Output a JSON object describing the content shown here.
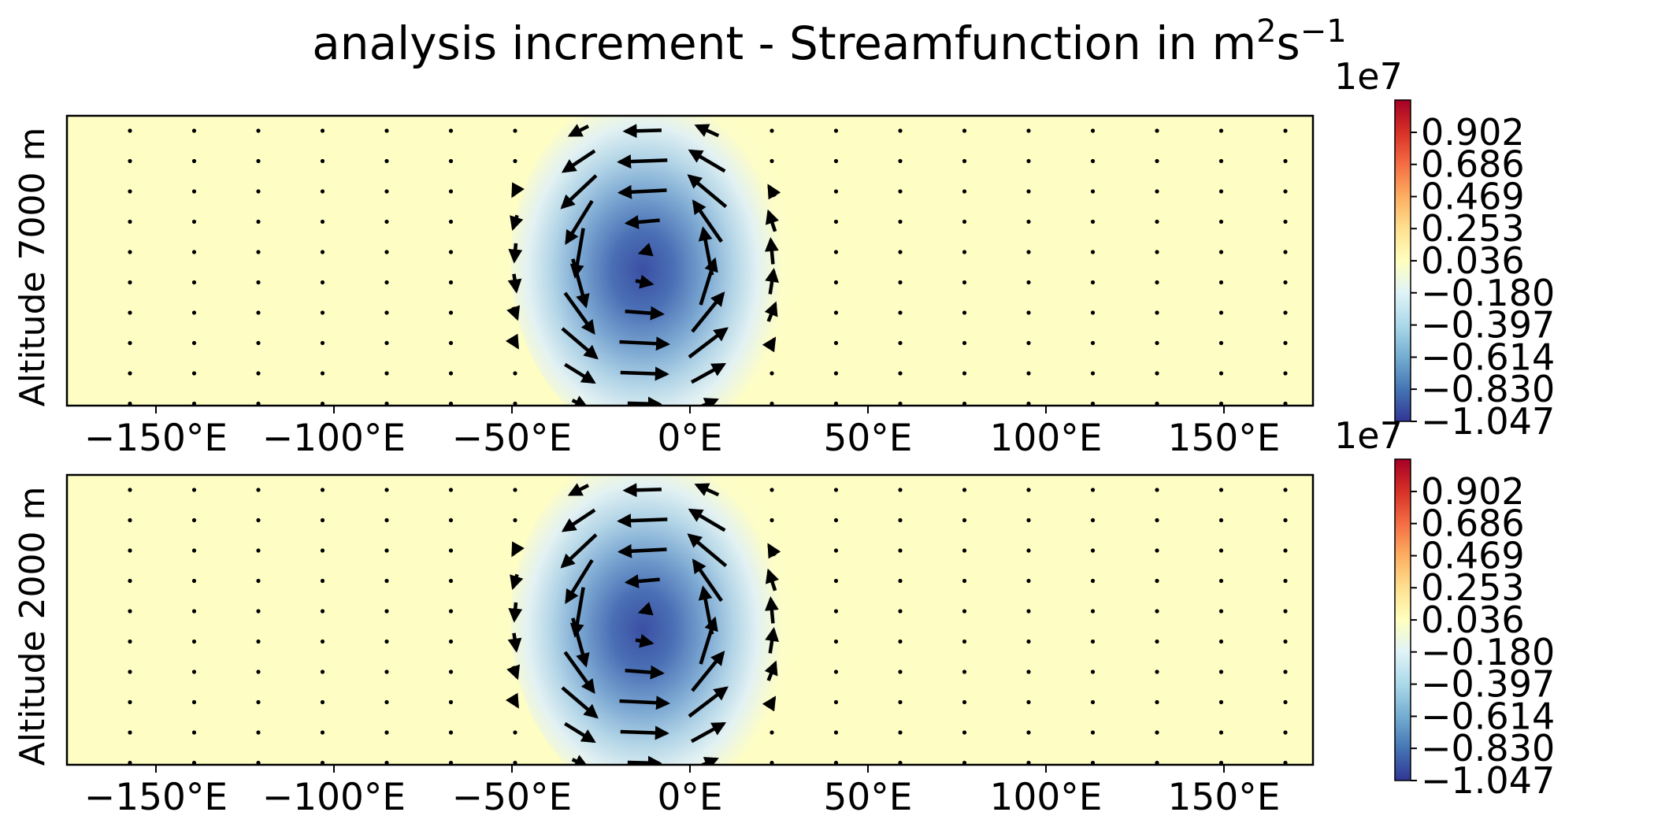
{
  "title": {
    "text": "analysis increment - Streamfunction in m",
    "sup1": "2",
    "mid": "s",
    "sup2": "−1"
  },
  "chart_data": [
    {
      "type": "heatmap",
      "ylabel": "Altitude 7000 m",
      "xlim": [
        -175,
        175
      ],
      "xticks": [
        "−150°E",
        "−100°E",
        "−50°E",
        "0°E",
        "50°E",
        "100°E",
        "150°E"
      ],
      "xtick_values": [
        -150,
        -100,
        -50,
        0,
        50,
        100,
        150
      ],
      "field": {
        "center_lon": -12,
        "min": -10470000.0,
        "background": 360000.0
      },
      "vectors": "cyclonic wind arrows around a streamfunction minimum near 10°W",
      "colorbar": {
        "offset_label": "1e7",
        "ticks": [
          "0.902",
          "0.686",
          "0.469",
          "0.253",
          "0.036",
          "−0.180",
          "−0.397",
          "−0.614",
          "−0.830",
          "−1.047"
        ],
        "tick_values": [
          0.902,
          0.686,
          0.469,
          0.253,
          0.036,
          -0.18,
          -0.397,
          -0.614,
          -0.83,
          -1.047
        ],
        "cmap": "RdYlBu_r"
      }
    },
    {
      "type": "heatmap",
      "ylabel": "Altitude 2000 m",
      "xlim": [
        -175,
        175
      ],
      "xticks": [
        "−150°E",
        "−100°E",
        "−50°E",
        "0°E",
        "50°E",
        "100°E",
        "150°E"
      ],
      "xtick_values": [
        -150,
        -100,
        -50,
        0,
        50,
        100,
        150
      ],
      "field": {
        "center_lon": -12,
        "min": -10470000.0,
        "background": 360000.0
      },
      "vectors": "cyclonic wind arrows around a streamfunction minimum near 10°W",
      "colorbar": {
        "offset_label": "1e7",
        "ticks": [
          "0.902",
          "0.686",
          "0.469",
          "0.253",
          "0.036",
          "−0.180",
          "−0.397",
          "−0.614",
          "−0.830",
          "−1.047"
        ],
        "tick_values": [
          0.902,
          0.686,
          0.469,
          0.253,
          0.036,
          -0.18,
          -0.397,
          -0.614,
          -0.83,
          -1.047
        ],
        "cmap": "RdYlBu_r"
      }
    }
  ]
}
